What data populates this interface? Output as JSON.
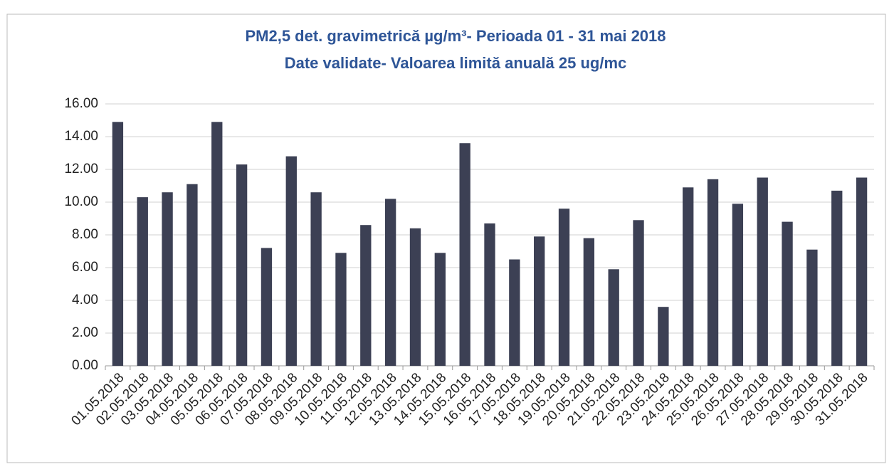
{
  "chart_data": {
    "type": "bar",
    "title": "PM2,5 det. gravimetrică µg/m³- Perioada 01 - 31 mai 2018",
    "subtitle": "Date validate- Valoarea limită anuală 25  ug/mc",
    "categories": [
      "01.05.2018",
      "02.05.2018",
      "03.05.2018",
      "04.05.2018",
      "05.05.2018",
      "06.05.2018",
      "07.05.2018",
      "08.05.2018",
      "09.05.2018",
      "10.05.2018",
      "11.05.2018",
      "12.05.2018",
      "13.05.2018",
      "14.05.2018",
      "15.05.2018",
      "16.05.2018",
      "17.05.2018",
      "18.05.2018",
      "19.05.2018",
      "20.05.2018",
      "21.05.2018",
      "22.05.2018",
      "23.05.2018",
      "24.05.2018",
      "25.05.2018",
      "26.05.2018",
      "27.05.2018",
      "28.05.2018",
      "29.05.2018",
      "30.05.2018",
      "31.05.2018"
    ],
    "values": [
      14.9,
      10.3,
      10.6,
      11.1,
      14.9,
      12.3,
      7.2,
      12.8,
      10.6,
      6.9,
      8.6,
      10.2,
      8.4,
      6.9,
      13.6,
      8.7,
      6.5,
      7.9,
      9.6,
      7.8,
      5.9,
      8.9,
      3.6,
      10.9,
      11.4,
      9.9,
      11.5,
      8.8,
      7.1,
      10.7,
      11.5
    ],
    "color": "#3c4054",
    "ylim": [
      0,
      16
    ],
    "yticks": [
      {
        "value": 0,
        "label": "0.00"
      },
      {
        "value": 2,
        "label": "2.00"
      },
      {
        "value": 4,
        "label": "4.00"
      },
      {
        "value": 6,
        "label": "6.00"
      },
      {
        "value": 8,
        "label": "8.00"
      },
      {
        "value": 10,
        "label": "10.00"
      },
      {
        "value": 12,
        "label": "12.00"
      },
      {
        "value": 14,
        "label": "14.00"
      },
      {
        "value": 16,
        "label": "16.00"
      }
    ],
    "grid": true
  }
}
